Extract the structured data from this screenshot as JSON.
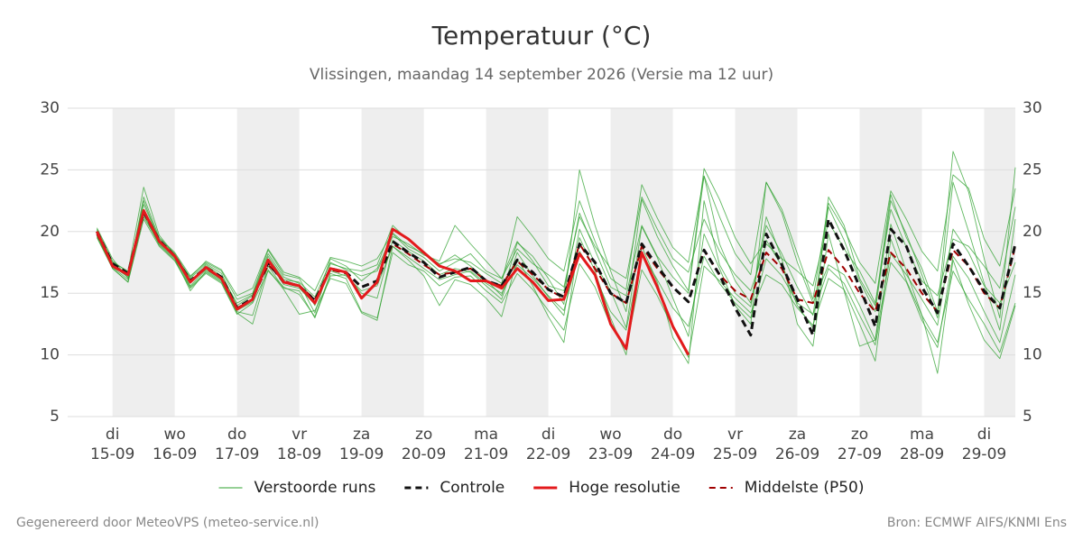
{
  "chart_data": {
    "type": "ensemble-line",
    "title": "Temperatuur (°C)",
    "subtitle": "Vlissingen, maandag 14 september 2026 (Versie ma 12 uur)",
    "footer_left": "Gegenereerd door MeteoVPS (meteo-service.nl)",
    "footer_right": "Bron: ECMWF AIFS/KNMI Ens",
    "xlim": [
      0.28,
      15.5
    ],
    "xticks": [
      {
        "value": 1,
        "label": "di",
        "date": "15-09"
      },
      {
        "value": 2,
        "label": "wo",
        "date": "16-09"
      },
      {
        "value": 3,
        "label": "do",
        "date": "17-09"
      },
      {
        "value": 4,
        "label": "vr",
        "date": "18-09"
      },
      {
        "value": 5,
        "label": "za",
        "date": "19-09"
      },
      {
        "value": 6,
        "label": "zo",
        "date": "20-09"
      },
      {
        "value": 7,
        "label": "ma",
        "date": "21-09"
      },
      {
        "value": 8,
        "label": "di",
        "date": "22-09"
      },
      {
        "value": 9,
        "label": "wo",
        "date": "23-09"
      },
      {
        "value": 10,
        "label": "do",
        "date": "24-09"
      },
      {
        "value": 11,
        "label": "vr",
        "date": "25-09"
      },
      {
        "value": 12,
        "label": "za",
        "date": "26-09"
      },
      {
        "value": 13,
        "label": "zo",
        "date": "27-09"
      },
      {
        "value": 14,
        "label": "ma",
        "date": "28-09"
      },
      {
        "value": 15,
        "label": "di",
        "date": "29-09"
      }
    ],
    "ylim": [
      5,
      30
    ],
    "yticks": [
      5,
      10,
      15,
      20,
      25,
      30
    ],
    "right_axis": true,
    "grid": true,
    "shade_alternate_days": true,
    "legend": "bottom",
    "x": [
      0.75,
      1,
      1.25,
      1.5,
      1.75,
      2,
      2.25,
      2.5,
      2.75,
      3,
      3.25,
      3.5,
      3.75,
      4,
      4.25,
      4.5,
      4.75,
      5,
      5.25,
      5.5,
      5.75,
      6,
      6.25,
      6.5,
      6.75,
      7,
      7.25,
      7.5,
      7.75,
      8,
      8.25,
      8.5,
      8.75,
      9,
      9.25,
      9.5,
      9.75,
      10,
      10.25,
      10.5,
      10.75,
      11,
      11.25,
      11.5,
      11.75,
      12,
      12.25,
      12.5,
      12.75,
      13,
      13.25,
      13.5,
      13.75,
      14,
      14.25,
      14.5,
      14.75,
      15,
      15.25,
      15.5
    ],
    "series": [
      {
        "name": "Verstoorde runs",
        "color": "#2ca02c",
        "width": 0.9,
        "opacity": 0.75,
        "dash": false,
        "runs": [
          [
            20.3,
            17.8,
            16.2,
            22.8,
            19.5,
            18.3,
            16.4,
            17.5,
            16.8,
            14.5,
            15,
            18.5,
            16.5,
            16.2,
            14,
            17.8,
            17.2,
            16,
            17,
            19.8,
            18.6,
            17.9,
            16.8,
            17.5,
            18.2,
            16.8,
            16.2,
            19.2,
            17.6,
            15.6,
            15.2,
            21.5,
            18.5,
            15.5,
            14.8,
            20.5,
            18,
            16.3,
            15,
            24.5,
            19,
            16,
            14.2,
            20.5,
            18.2,
            15.5,
            13.2,
            22,
            19.3,
            16,
            13.5,
            22.5,
            19.8,
            16.5,
            13,
            24,
            20,
            15.8,
            12,
            21
          ],
          [
            19.5,
            17,
            15.9,
            21,
            18.8,
            17.6,
            15.4,
            16.6,
            15.8,
            13.3,
            14.2,
            16.8,
            15.5,
            14.9,
            13.1,
            16.6,
            16.2,
            13.5,
            13,
            18.3,
            17.3,
            16.8,
            15.6,
            16.3,
            16.4,
            15.2,
            14.2,
            16.6,
            15.3,
            13.6,
            12,
            17.4,
            15.5,
            12.4,
            10.5,
            16.9,
            14.8,
            12.2,
            9.8,
            17.2,
            16,
            14.6,
            13.4,
            16.5,
            15.7,
            13.8,
            12.4,
            16.2,
            15.3,
            12.5,
            9.5,
            19.4,
            16,
            13.2,
            11,
            16.8,
            14.5,
            12.5,
            10.2,
            14.2
          ],
          [
            20.1,
            17.5,
            16.8,
            23.6,
            19.7,
            18.1,
            15.8,
            17.3,
            16.4,
            14.2,
            14.9,
            18.2,
            16.3,
            15.8,
            13.4,
            17.4,
            17,
            16.8,
            17.3,
            20.5,
            19.3,
            18.4,
            17.3,
            18.1,
            17.2,
            16.1,
            14.8,
            19.1,
            18,
            16.2,
            14.1,
            25,
            20.5,
            16.8,
            13.5,
            22.6,
            19.6,
            17.2,
            15.2,
            25.1,
            22.6,
            19.5,
            17.4,
            19.3,
            17.2,
            14,
            12.2,
            22.8,
            20.5,
            16.2,
            14,
            23,
            19.5,
            17,
            13.5,
            26.5,
            23.2,
            17.8,
            13,
            25.2
          ],
          [
            19.8,
            17.2,
            16.3,
            21.2,
            19,
            17.8,
            15.2,
            16.8,
            16,
            13.5,
            13.2,
            17.2,
            15.4,
            15.2,
            13,
            16.4,
            16.5,
            15,
            14.6,
            19.3,
            18.4,
            17.6,
            16.5,
            17,
            16.7,
            15.6,
            14.5,
            18.3,
            16.4,
            14.7,
            13.2,
            20.2,
            17.4,
            15.2,
            12.2,
            20.4,
            17.9,
            14.6,
            11.5,
            19.8,
            17,
            14,
            12.5,
            24,
            21.5,
            17.5,
            14.2,
            17.3,
            16.5,
            14,
            11.2,
            18.2,
            16.5,
            14.5,
            12.4,
            20.2,
            18.3,
            15.6,
            14.2,
            17.5
          ],
          [
            20.2,
            17.6,
            16.7,
            22.2,
            19.4,
            18.2,
            16.2,
            17.4,
            16.6,
            14,
            14.8,
            18,
            16.1,
            15.9,
            14.7,
            17.5,
            16.9,
            16.4,
            16.8,
            19.6,
            19,
            18.1,
            17.6,
            20.5,
            19,
            17.6,
            16.2,
            18.6,
            17.4,
            16.5,
            15.5,
            21.2,
            18.8,
            17,
            16.2,
            22.8,
            20.2,
            17.8,
            16.7,
            21,
            18.4,
            16.5,
            15.2,
            19,
            17.8,
            16.8,
            15.6,
            20.8,
            18.6,
            16.8,
            14.2,
            21.8,
            18.7,
            16,
            14.8,
            19.4,
            18.8,
            17.2,
            15.4,
            22
          ],
          [
            19.6,
            17.1,
            16.1,
            21.8,
            19.1,
            17.9,
            15.6,
            16.9,
            16.1,
            13.6,
            14.3,
            17.6,
            15.7,
            15.4,
            14.1,
            16.8,
            16.4,
            15.2,
            15.6,
            18.8,
            17.9,
            17,
            16.1,
            16.5,
            16.8,
            15.8,
            15,
            17.3,
            16.2,
            14.8,
            13.6,
            18.4,
            16.4,
            13.5,
            12,
            18.2,
            16.1,
            13.8,
            12.3,
            18,
            15.8,
            14.2,
            13,
            17.8,
            16.4,
            14.2,
            13.3,
            17,
            15.8,
            13.2,
            10.8,
            17.5,
            15.9,
            12.8,
            10.6,
            18,
            16.2,
            13.5,
            11,
            16.5
          ],
          [
            20,
            17.3,
            16.4,
            22.5,
            19.3,
            18,
            16.3,
            17.6,
            16.9,
            14.8,
            15.4,
            18.6,
            16.7,
            16.3,
            15.2,
            17.9,
            17.6,
            17.2,
            17.8,
            19.9,
            18.8,
            18.2,
            17.4,
            17.8,
            17.5,
            16.6,
            15.8,
            21.2,
            19.6,
            17.8,
            16.8,
            22.5,
            19.2,
            16.2,
            15.3,
            23.8,
            21.1,
            18.7,
            17.5,
            24.5,
            21.2,
            18.2,
            16.5,
            24,
            21.8,
            18.2,
            14.5,
            22.3,
            20.2,
            17.5,
            15.8,
            23.3,
            21,
            18.4,
            16.8,
            24.6,
            23.5,
            19.4,
            17.2,
            23.5
          ],
          [
            19.7,
            17,
            15.9,
            21.4,
            18.9,
            17.7,
            15.5,
            16.7,
            15.9,
            13.4,
            12.5,
            16.9,
            15.3,
            13.3,
            13.6,
            16.2,
            15.8,
            13.4,
            12.8,
            18.8,
            17.7,
            16.4,
            14,
            16.1,
            15.7,
            14.6,
            13.1,
            17.8,
            15.6,
            13.1,
            11,
            19.5,
            16.8,
            13,
            10,
            18.8,
            15.9,
            11.4,
            9.3,
            22.5,
            17.3,
            15,
            13.9,
            21.2,
            17.8,
            12.5,
            10.7,
            19.8,
            15.2,
            10.7,
            11.2,
            20.6,
            16.8,
            13.2,
            8.5,
            17.7,
            14.1,
            11.2,
            9.7,
            14
          ]
        ]
      },
      {
        "name": "Controle",
        "color": "#111111",
        "width": 3,
        "dash": true,
        "values": [
          20,
          17.4,
          16.6,
          21.6,
          19.3,
          18,
          16,
          17.1,
          16.3,
          13.8,
          14.6,
          17.5,
          15.9,
          15.6,
          14.4,
          17,
          16.7,
          15.5,
          16,
          19.2,
          18.3,
          17.5,
          16.3,
          16.7,
          17.1,
          16,
          15.6,
          17.7,
          16.7,
          15.3,
          14.7,
          19,
          17.5,
          15,
          14.2,
          19,
          17.2,
          15.5,
          14.3,
          18.5,
          16.5,
          13.8,
          11.6,
          19.8,
          17.3,
          14.5,
          11.6,
          21,
          18.5,
          15.5,
          12.3,
          20.2,
          18.8,
          15.5,
          13.4,
          19,
          17.2,
          15.2,
          13.8,
          19
        ]
      },
      {
        "name": "Hoge resolutie",
        "color": "#e31a1c",
        "width": 3,
        "dash": false,
        "values": [
          20,
          17.2,
          16.5,
          21.7,
          19.2,
          18,
          15.9,
          17.1,
          16.2,
          13.7,
          14.5,
          17.7,
          15.9,
          15.6,
          14.2,
          17,
          16.7,
          14.6,
          15.9,
          20.2,
          19.4,
          18.3,
          17.2,
          16.8,
          16,
          16,
          15.4,
          17,
          15.9,
          14.4,
          14.5,
          18.2,
          16.5,
          12.5,
          10.5,
          18.3,
          15.5,
          12.3,
          10,
          null,
          null,
          null,
          null,
          null,
          null,
          null,
          null,
          null,
          null,
          null,
          null,
          null,
          null,
          null,
          null,
          null,
          null,
          null,
          null,
          null
        ]
      },
      {
        "name": "Middelste (P50)",
        "color": "#a00000",
        "width": 2,
        "dash": true,
        "values": [
          19.8,
          17.3,
          16.5,
          21.5,
          19.2,
          18,
          16,
          17,
          16.2,
          13.8,
          14.5,
          17.3,
          16,
          15.6,
          14.5,
          16.9,
          16.6,
          15.5,
          16,
          19,
          18.2,
          17.3,
          16.5,
          16.7,
          17,
          16,
          15.6,
          17.6,
          16.5,
          15.3,
          14.6,
          19,
          17,
          15,
          14.2,
          18.8,
          17,
          15.5,
          14.3,
          18.5,
          16.5,
          15.2,
          14.5,
          18.3,
          17,
          14.5,
          14.2,
          18.5,
          17,
          15,
          13.5,
          18.3,
          17,
          15,
          13.5,
          18.5,
          17.2,
          15,
          13.8,
          18.8
        ]
      }
    ]
  }
}
